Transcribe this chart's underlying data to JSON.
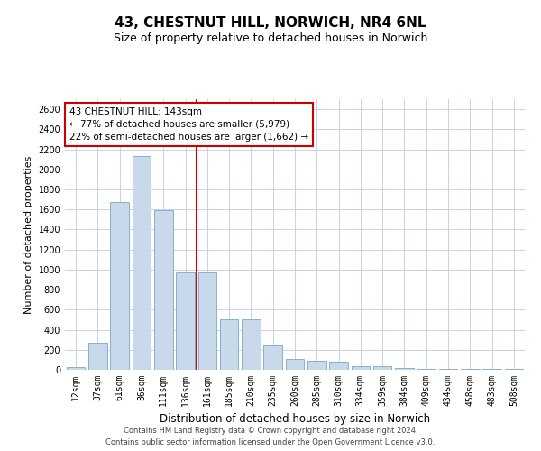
{
  "title": "43, CHESTNUT HILL, NORWICH, NR4 6NL",
  "subtitle": "Size of property relative to detached houses in Norwich",
  "xlabel": "Distribution of detached houses by size in Norwich",
  "ylabel": "Number of detached properties",
  "bar_color": "#c8d9eb",
  "bar_edge_color": "#8ab0cc",
  "vline_color": "#cc0000",
  "vline_x": 5.5,
  "annotation_text": "43 CHESTNUT HILL: 143sqm\n← 77% of detached houses are smaller (5,979)\n22% of semi-detached houses are larger (1,662) →",
  "footer_line1": "Contains HM Land Registry data © Crown copyright and database right 2024.",
  "footer_line2": "Contains public sector information licensed under the Open Government Licence v3.0.",
  "categories": [
    "12sqm",
    "37sqm",
    "61sqm",
    "86sqm",
    "111sqm",
    "136sqm",
    "161sqm",
    "185sqm",
    "210sqm",
    "235sqm",
    "260sqm",
    "285sqm",
    "310sqm",
    "334sqm",
    "359sqm",
    "384sqm",
    "409sqm",
    "434sqm",
    "458sqm",
    "483sqm",
    "508sqm"
  ],
  "values": [
    25,
    270,
    1670,
    2130,
    1590,
    975,
    970,
    500,
    500,
    245,
    110,
    90,
    85,
    38,
    32,
    18,
    10,
    12,
    5,
    12,
    5
  ],
  "ylim": [
    0,
    2700
  ],
  "yticks": [
    0,
    200,
    400,
    600,
    800,
    1000,
    1200,
    1400,
    1600,
    1800,
    2000,
    2200,
    2400,
    2600
  ],
  "background_color": "#ffffff",
  "grid_color": "#c8d4e0",
  "title_fontsize": 11,
  "subtitle_fontsize": 9,
  "annotation_box_color": "#ffffff",
  "annotation_box_edge": "#cc0000"
}
